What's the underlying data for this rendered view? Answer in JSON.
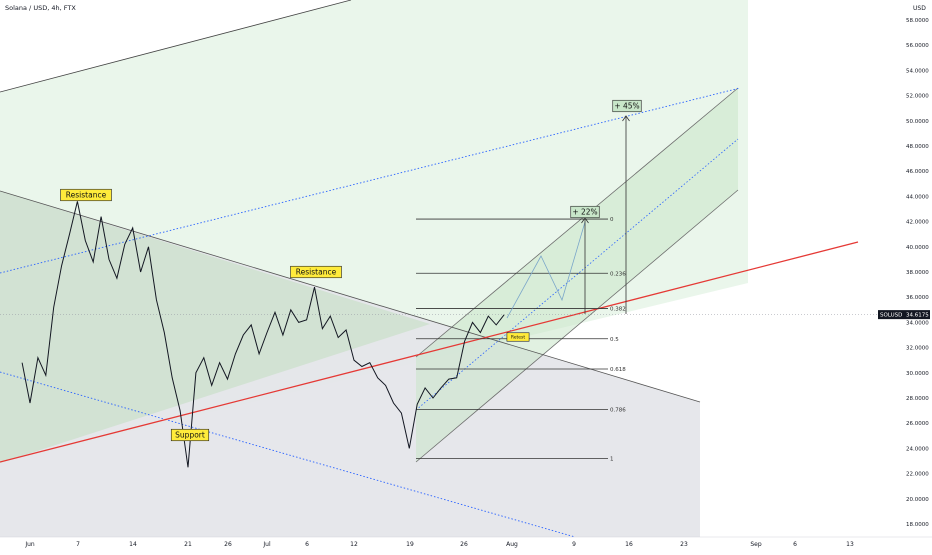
{
  "header": {
    "title": "Solana / USD, 4h, FTX",
    "unit": "USD"
  },
  "chart_data": {
    "type": "line",
    "symbol": "SOLUSD",
    "last_price": 34.6175,
    "last_price_label": "34.6175",
    "ylim": [
      16.6,
      59.3
    ],
    "y_ticks": [
      "18.0000",
      "20.0000",
      "22.0000",
      "24.0000",
      "26.0000",
      "28.0000",
      "30.0000",
      "32.0000",
      "34.0000",
      "36.0000",
      "38.0000",
      "40.0000",
      "42.0000",
      "44.0000",
      "46.0000",
      "48.0000",
      "50.0000",
      "52.0000",
      "54.0000",
      "56.0000",
      "58.0000"
    ],
    "x_ticks": [
      "Jun",
      "7",
      "14",
      "21",
      "26",
      "Jul",
      "6",
      "12",
      "19",
      "26",
      "Aug",
      "9",
      "16",
      "23",
      "Sep",
      "6",
      "13"
    ],
    "x_tick_dates": [
      "2021-06-01",
      "2021-06-07",
      "2021-06-14",
      "2021-06-21",
      "2021-06-26",
      "2021-07-01",
      "2021-07-06",
      "2021-07-12",
      "2021-07-19",
      "2021-07-26",
      "2021-08-01",
      "2021-08-09",
      "2021-08-16",
      "2021-08-23",
      "2021-09-01",
      "2021-09-06",
      "2021-09-13"
    ],
    "series": [
      {
        "x": [
          "2021-05-31",
          "2021-06-01",
          "2021-06-02",
          "2021-06-03",
          "2021-06-04",
          "2021-06-05",
          "2021-06-06",
          "2021-06-07",
          "2021-06-08",
          "2021-06-09",
          "2021-06-10",
          "2021-06-11",
          "2021-06-12",
          "2021-06-13",
          "2021-06-14",
          "2021-06-15",
          "2021-06-16",
          "2021-06-17",
          "2021-06-18",
          "2021-06-19",
          "2021-06-20",
          "2021-06-21",
          "2021-06-22",
          "2021-06-23",
          "2021-06-24",
          "2021-06-25",
          "2021-06-26",
          "2021-06-27",
          "2021-06-28",
          "2021-06-29",
          "2021-06-30",
          "2021-07-01",
          "2021-07-02",
          "2021-07-03",
          "2021-07-04",
          "2021-07-05",
          "2021-07-06",
          "2021-07-07",
          "2021-07-08",
          "2021-07-09",
          "2021-07-10",
          "2021-07-11",
          "2021-07-12",
          "2021-07-13",
          "2021-07-14",
          "2021-07-15",
          "2021-07-16",
          "2021-07-17",
          "2021-07-18",
          "2021-07-19",
          "2021-07-20",
          "2021-07-21",
          "2021-07-22",
          "2021-07-23",
          "2021-07-24",
          "2021-07-25",
          "2021-07-26",
          "2021-07-27",
          "2021-07-28",
          "2021-07-29",
          "2021-07-30",
          "2021-07-31"
        ],
        "y": [
          30.8,
          27.6,
          31.2,
          29.8,
          35.2,
          38.5,
          41.0,
          43.6,
          40.5,
          38.8,
          42.4,
          39.0,
          37.5,
          40.2,
          41.5,
          38.0,
          40.0,
          35.8,
          33.2,
          29.6,
          27.0,
          22.5,
          30.0,
          31.2,
          29.0,
          30.8,
          29.5,
          31.5,
          33.0,
          33.8,
          31.5,
          33.2,
          34.8,
          33.0,
          35.0,
          34.0,
          34.2,
          36.8,
          33.5,
          34.5,
          32.8,
          33.4,
          31.0,
          30.5,
          30.8,
          29.6,
          29.0,
          27.6,
          26.8,
          24.0,
          27.5,
          28.8,
          28.0,
          28.8,
          29.5,
          29.6,
          32.5,
          34.0,
          33.2,
          34.5,
          33.8,
          34.6
        ]
      }
    ],
    "annotations": {
      "labels": [
        "Resistance",
        "Resistance",
        "Support",
        "Retest"
      ],
      "targets": [
        "+ 22%",
        "+ 45%"
      ],
      "fib_levels": [
        {
          "label": "0",
          "value": 42.2
        },
        {
          "label": "0.236",
          "value": 37.9
        },
        {
          "label": "0.382",
          "value": 35.1
        },
        {
          "label": "0.5",
          "value": 32.7
        },
        {
          "label": "0.618",
          "value": 30.3
        },
        {
          "label": "0.786",
          "value": 27.1
        },
        {
          "label": "1",
          "value": 23.2
        }
      ]
    },
    "colors": {
      "price": "#131722",
      "resistance_red": "#e53935",
      "blue_dotted": "#2962ff",
      "green_zone": "#e8f5e9",
      "channel_fill": "#c8e6c9",
      "gray_zone": "#e5e6ea",
      "label_bg": "#ffeb3b",
      "target_bg": "#c8e6c9"
    },
    "grid": false
  }
}
